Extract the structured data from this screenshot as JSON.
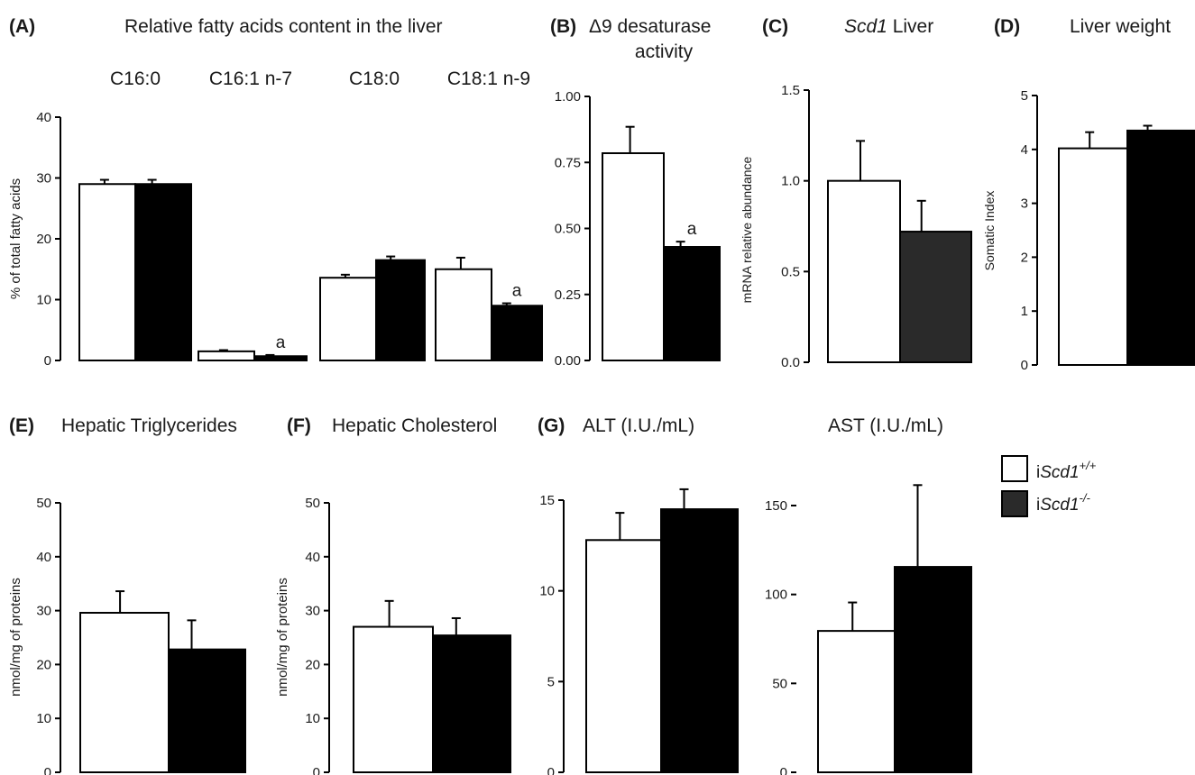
{
  "colors": {
    "wild_type": "#ffffff",
    "knockout": "#000000",
    "knockout_C": "#2a2a2a",
    "outline": "#000000"
  },
  "legend": {
    "items": [
      {
        "prefix": "i",
        "gene": "Scd1",
        "sup": "+/+",
        "color": "#ffffff"
      },
      {
        "prefix": "i",
        "gene": "Scd1",
        "sup": "-/-",
        "color": "#2a2a2a"
      }
    ]
  },
  "chart_data": [
    {
      "id": "A",
      "type": "bar",
      "letter": "(A)",
      "title": "Relative fatty acids content in the liver",
      "categories": [
        "C16:0",
        "C16:1 n-7",
        "C18:0",
        "C18:1 n-9"
      ],
      "ylabel": "% of total fatty acids",
      "ylim": [
        0,
        40
      ],
      "yticks": [
        "0",
        "10",
        "20",
        "30",
        "40"
      ],
      "series": [
        {
          "values": [
            29.0,
            1.5,
            13.6,
            15.0
          ],
          "errors": [
            0.7,
            0.2,
            0.5,
            1.9
          ]
        },
        {
          "values": [
            29.0,
            0.7,
            16.5,
            9.0
          ],
          "errors": [
            0.7,
            0.2,
            0.6,
            0.4
          ]
        }
      ],
      "annotations": [
        {
          "category": 1,
          "series": 1,
          "text": "a"
        },
        {
          "category": 3,
          "series": 1,
          "text": "a"
        }
      ]
    },
    {
      "id": "B",
      "type": "bar",
      "letter": "(B)",
      "title": "Δ9 desaturase",
      "title2": "activity",
      "ylabel": "",
      "ylim": [
        0,
        1
      ],
      "yticks": [
        "0.00",
        "0.25",
        "0.50",
        "0.75",
        "1.00"
      ],
      "series": [
        {
          "values": [
            0.785
          ],
          "errors": [
            0.1
          ]
        },
        {
          "values": [
            0.43
          ],
          "errors": [
            0.02
          ]
        }
      ],
      "annotations": [
        {
          "category": 0,
          "series": 1,
          "text": "a"
        }
      ]
    },
    {
      "id": "C",
      "type": "bar",
      "letter": "(C)",
      "title_italic": "Scd1",
      "title": " Liver",
      "ylabel": "mRNA relative abundance",
      "ylim": [
        0,
        1.5
      ],
      "yticks": [
        "0.0",
        "0.5",
        "1.0",
        "1.5"
      ],
      "series": [
        {
          "values": [
            1.0
          ],
          "errors": [
            0.22
          ]
        },
        {
          "values": [
            0.72
          ],
          "errors": [
            0.17
          ]
        }
      ],
      "annotations": []
    },
    {
      "id": "D",
      "type": "bar",
      "letter": "(D)",
      "title": "Liver weight",
      "ylabel": "Somatic Index",
      "ylim": [
        0,
        5
      ],
      "yticks": [
        "0",
        "1",
        "2",
        "3",
        "4",
        "5"
      ],
      "series": [
        {
          "values": [
            4.02
          ],
          "errors": [
            0.3
          ]
        },
        {
          "values": [
            4.35
          ],
          "errors": [
            0.09
          ]
        }
      ],
      "annotations": []
    },
    {
      "id": "E",
      "type": "bar",
      "letter": "(E)",
      "title": "Hepatic Triglycerides",
      "ylabel": "nmol/mg of proteins",
      "ylim": [
        0,
        50
      ],
      "yticks": [
        "0",
        "10",
        "20",
        "30",
        "40",
        "50"
      ],
      "series": [
        {
          "values": [
            29.6
          ],
          "errors": [
            4.0
          ]
        },
        {
          "values": [
            22.8
          ],
          "errors": [
            5.4
          ]
        }
      ],
      "annotations": []
    },
    {
      "id": "F",
      "type": "bar",
      "letter": "(F)",
      "title": "Hepatic Cholesterol",
      "ylabel": "nmol/mg of proteins",
      "ylim": [
        0,
        50
      ],
      "yticks": [
        "0",
        "10",
        "20",
        "30",
        "40",
        "50"
      ],
      "series": [
        {
          "values": [
            27.0
          ],
          "errors": [
            4.8
          ]
        },
        {
          "values": [
            25.4
          ],
          "errors": [
            3.2
          ]
        }
      ],
      "annotations": []
    },
    {
      "id": "G1",
      "type": "bar",
      "letter": "(G)",
      "title": "ALT (I.U./mL)",
      "ylabel": "",
      "ylim": [
        0,
        15
      ],
      "yticks": [
        "0",
        "5",
        "10",
        "15"
      ],
      "series": [
        {
          "values": [
            12.8
          ],
          "errors": [
            1.5
          ]
        },
        {
          "values": [
            14.5
          ],
          "errors": [
            1.1
          ]
        }
      ],
      "annotations": []
    },
    {
      "id": "G2",
      "type": "bar",
      "letter": "",
      "title": "AST (I.U./mL)",
      "ylabel": "",
      "ylim": [
        0,
        150
      ],
      "yticks": [
        "0",
        "50",
        "100",
        "150"
      ],
      "series": [
        {
          "values": [
            79.5
          ],
          "errors": [
            16
          ]
        },
        {
          "values": [
            115.5
          ],
          "errors": [
            46
          ]
        }
      ],
      "annotations": []
    }
  ]
}
